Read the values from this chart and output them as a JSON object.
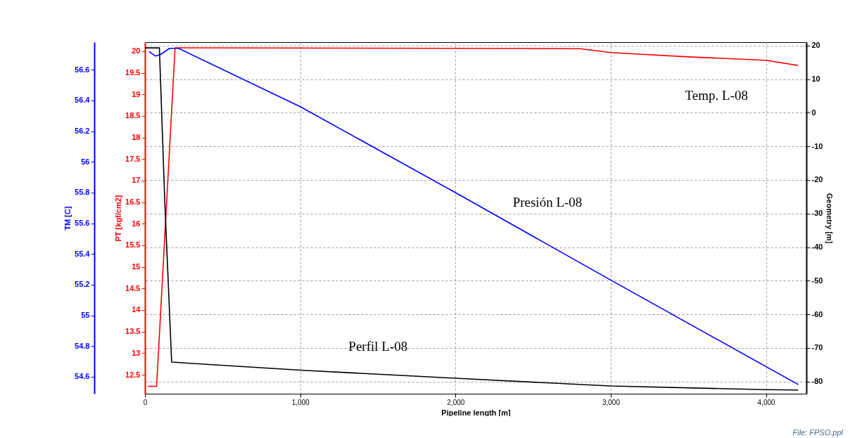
{
  "chart_data": {
    "type": "line",
    "xlabel": "Pipeline length [m]",
    "ylabel": "PT [kgf/cm2]",
    "y2label": "TM [C]",
    "y3label": "Geometry [m]",
    "xlim": [
      0,
      4260
    ],
    "xticks": [
      0,
      {
        "value": 1000,
        "label": "1,000"
      },
      {
        "value": 2000,
        "label": "2,000"
      },
      {
        "value": 3000,
        "label": "3,000"
      },
      {
        "value": 4000,
        "label": "4,000"
      }
    ],
    "ylim": [
      12.06,
      20.21
    ],
    "yticks": [
      12.5,
      13,
      13.5,
      14,
      14.5,
      15,
      15.5,
      16,
      16.5,
      17,
      17.5,
      18,
      18.5,
      19,
      19.5,
      20
    ],
    "y2lim": [
      54.49,
      56.78
    ],
    "y2ticks": [
      54.6,
      54.8,
      55,
      55.2,
      55.4,
      55.6,
      55.8,
      56,
      56.2,
      56.4,
      56.6
    ],
    "y3lim": [
      -83.6,
      21
    ],
    "y3ticks": [
      -80,
      -70,
      -60,
      -50,
      -40,
      -30,
      -20,
      -10,
      0,
      10,
      20
    ],
    "grid": true,
    "annotations": [
      "File: FPSO.ppl"
    ],
    "series": [
      {
        "name": "Temp. L-08",
        "color": "#ff0000",
        "axis": "y",
        "x": [
          18,
          75,
          194,
          2800,
          3000,
          3500,
          4000,
          4207
        ],
        "values": [
          12.23,
          12.23,
          20.08,
          20.06,
          19.97,
          19.87,
          19.79,
          19.67
        ]
      },
      {
        "name": "Presión L-08",
        "color": "#0000ff",
        "axis": "y2",
        "x": [
          26,
          66,
          101,
          159,
          216,
          1000,
          2000,
          3000,
          4207
        ],
        "values": [
          56.72,
          56.69,
          56.7,
          56.74,
          56.74,
          56.36,
          55.8,
          55.23,
          54.55
        ]
      },
      {
        "name": "Perfil L-08",
        "color": "#000000",
        "axis": "y3",
        "x": [
          0,
          93,
          128,
          172,
          1000,
          2000,
          3000,
          4000,
          4207
        ],
        "values": [
          19.3,
          19.3,
          -26.7,
          -74.2,
          -76.6,
          -79,
          -81.3,
          -82.4,
          -82.5
        ]
      }
    ]
  }
}
